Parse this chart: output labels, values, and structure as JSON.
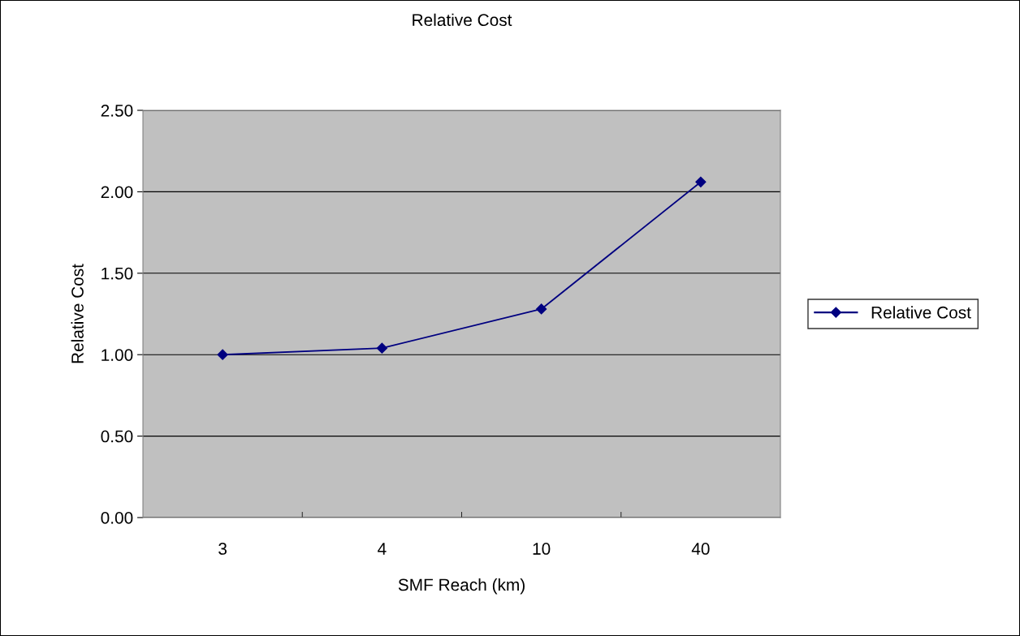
{
  "chart_data": {
    "type": "line",
    "title": "Relative Cost",
    "xlabel": "SMF Reach (km)",
    "ylabel": "Relative Cost",
    "categories": [
      "3",
      "4",
      "10",
      "40"
    ],
    "series": [
      {
        "name": "Relative Cost",
        "color": "#000080",
        "values": [
          1.0,
          1.04,
          1.28,
          2.06
        ]
      }
    ],
    "ylim": [
      0,
      2.5
    ],
    "yticks": [
      {
        "value": 0,
        "label": "0.00"
      },
      {
        "value": 0.5,
        "label": "0.50"
      },
      {
        "value": 1,
        "label": "1.00"
      },
      {
        "value": 1.5,
        "label": "1.50"
      },
      {
        "value": 2,
        "label": "2.00"
      },
      {
        "value": 2.5,
        "label": "2.50"
      }
    ],
    "grid": "y",
    "legend": "right",
    "marker": "diamond",
    "line_style": "solid"
  }
}
